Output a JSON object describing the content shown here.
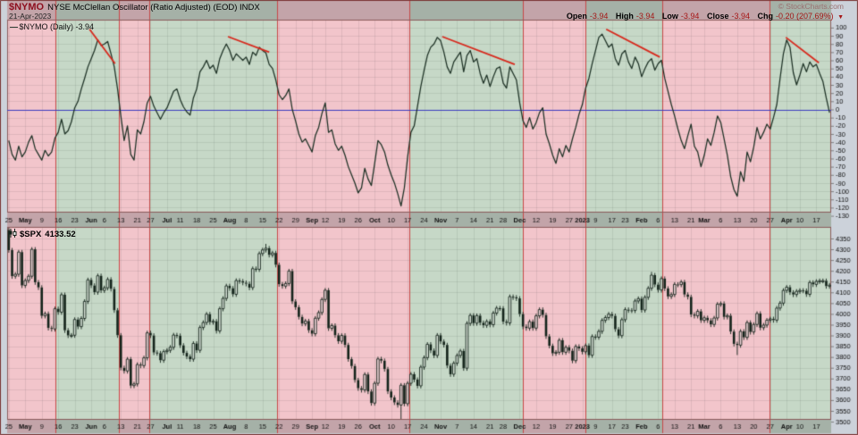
{
  "header": {
    "symbol": "$NYMO",
    "title": "NYSE McClellan Oscillator (Ratio Adjusted) (EOD) INDX",
    "date": "21-Apr-2023",
    "credit": "© StockCharts.com",
    "ohlc": {
      "open_label": "Open",
      "open": "-3.94",
      "high_label": "High",
      "high": "-3.94",
      "low_label": "Low",
      "low": "-3.94",
      "close_label": "Close",
      "close": "-3.94",
      "chg_label": "Chg",
      "chg": "-0.20 (207.69%)",
      "chg_arrow": "▼"
    }
  },
  "oscillator_panel": {
    "legend_swatch": "—",
    "legend": "$NYMO (Daily)",
    "legend_value": "-3.94"
  },
  "price_panel": {
    "legend": "$SPX",
    "legend_value": "4133.52"
  },
  "colors": {
    "band_pink": "#f2c5cb",
    "band_green": "#c6d8c7",
    "band_border": "#c84848",
    "muted_overlay": "rgba(95,95,100,0.32)",
    "axis_bg": "#ccd2da",
    "panel_border": "#8a5a5a",
    "grid": "rgba(60,60,60,0.10)",
    "line": "#1c3024",
    "zero_line": "#3b3bc0",
    "trendline": "#d8281c",
    "candle": "#13231a",
    "text": "#111111",
    "outer_border": "#7a3434"
  },
  "bands": {
    "segments": [
      [
        0,
        0.0586,
        "p"
      ],
      [
        0.0586,
        0.1356,
        "g"
      ],
      [
        0.1356,
        0.1725,
        "p"
      ],
      [
        0.1725,
        0.3276,
        "g"
      ],
      [
        0.3276,
        0.4881,
        "p"
      ],
      [
        0.4881,
        0.6258,
        "g"
      ],
      [
        0.6258,
        0.7017,
        "p"
      ],
      [
        0.7017,
        0.795,
        "g"
      ],
      [
        0.795,
        0.9252,
        "p"
      ],
      [
        0.9252,
        1,
        "g"
      ]
    ]
  },
  "x_axis": {
    "labels": [
      "25",
      "May",
      "9",
      "16",
      "23",
      "Jun",
      "6",
      "13",
      "21",
      "27",
      "Jul",
      "11",
      "18",
      "25",
      "Aug",
      "8",
      "15",
      "22",
      "29",
      "Sep",
      "12",
      "19",
      "26",
      "Oct",
      "10",
      "17",
      "24",
      "Nov",
      "7",
      "14",
      "21",
      "28",
      "Dec",
      "12",
      "19",
      "27",
      "2023",
      "9",
      "17",
      "23",
      "Feb",
      "6",
      "13",
      "21",
      "Mar",
      "6",
      "13",
      "20",
      "27",
      "Apr",
      "10",
      "17"
    ],
    "day_index": [
      0,
      5,
      10,
      15,
      20,
      25,
      29,
      34,
      39,
      43,
      48,
      52,
      57,
      62,
      67,
      72,
      77,
      82,
      87,
      92,
      96,
      101,
      106,
      111,
      116,
      121,
      126,
      131,
      136,
      141,
      146,
      150,
      155,
      160,
      165,
      170,
      174,
      178,
      183,
      187,
      192,
      197,
      202,
      207,
      211,
      216,
      221,
      226,
      231,
      236,
      240,
      245
    ]
  },
  "chart_data": [
    {
      "type": "line",
      "name": "$NYMO (Daily)",
      "title": "NYSE McClellan Oscillator (Ratio Adjusted) (EOD)",
      "last_value": -3.94,
      "ylim": [
        -130,
        110
      ],
      "y_ticks": [
        100,
        90,
        80,
        70,
        60,
        50,
        40,
        30,
        20,
        10,
        0,
        -10,
        -20,
        -30,
        -40,
        -50,
        -60,
        -70,
        -80,
        -90,
        -100,
        -110,
        -120,
        -130
      ],
      "zero_line": 0,
      "trendlines": [
        [
          0.1,
          98,
          0.131,
          56
        ],
        [
          0.268,
          89,
          0.318,
          70
        ],
        [
          0.528,
          89,
          0.616,
          55
        ],
        [
          0.727,
          98,
          0.792,
          64
        ],
        [
          0.945,
          88,
          0.985,
          57
        ]
      ],
      "values": [
        -38,
        -55,
        -62,
        -45,
        -58,
        -52,
        -40,
        -32,
        -48,
        -55,
        -62,
        -50,
        -57,
        -52,
        -35,
        -28,
        -12,
        -30,
        -26,
        -15,
        2,
        10,
        25,
        38,
        52,
        62,
        72,
        85,
        78,
        80,
        83,
        68,
        52,
        25,
        -8,
        -38,
        -20,
        -55,
        -62,
        -25,
        -30,
        -15,
        8,
        16,
        4,
        -4,
        -12,
        -4,
        2,
        12,
        22,
        25,
        12,
        3,
        -3,
        -7,
        14,
        25,
        46,
        52,
        60,
        50,
        54,
        44,
        62,
        72,
        80,
        72,
        60,
        68,
        64,
        60,
        64,
        55,
        70,
        66,
        76,
        72,
        69,
        55,
        50,
        36,
        18,
        12,
        17,
        25,
        0,
        -14,
        -30,
        -40,
        -36,
        -44,
        -52,
        -32,
        -22,
        -5,
        8,
        -28,
        -25,
        -42,
        -50,
        -45,
        -56,
        -70,
        -80,
        -90,
        -102,
        -96,
        -72,
        -85,
        -93,
        -66,
        -38,
        -43,
        -52,
        -68,
        -80,
        -90,
        -103,
        -118,
        -96,
        -58,
        -28,
        -20,
        4,
        28,
        48,
        66,
        76,
        80,
        88,
        84,
        70,
        52,
        44,
        58,
        64,
        70,
        46,
        66,
        72,
        58,
        62,
        44,
        32,
        42,
        28,
        40,
        50,
        52,
        32,
        26,
        52,
        44,
        36,
        8,
        -14,
        -22,
        -10,
        -24,
        -16,
        -4,
        2,
        -30,
        -42,
        -56,
        -66,
        -48,
        -58,
        -44,
        -52,
        -36,
        -22,
        -6,
        6,
        26,
        38,
        56,
        72,
        88,
        92,
        84,
        76,
        80,
        62,
        54,
        68,
        72,
        58,
        50,
        64,
        56,
        40,
        50,
        58,
        62,
        48,
        56,
        60,
        38,
        22,
        6,
        -8,
        -24,
        -38,
        -48,
        -32,
        -18,
        -45,
        -52,
        -70,
        -56,
        -36,
        -44,
        -28,
        -8,
        -16,
        -36,
        -56,
        -82,
        -98,
        -106,
        -76,
        -88,
        -52,
        -64,
        -46,
        -22,
        -36,
        -28,
        -18,
        -24,
        -10,
        6,
        38,
        68,
        85,
        76,
        45,
        30,
        42,
        56,
        46,
        58,
        52,
        55,
        44,
        34,
        14,
        -3.94
      ]
    },
    {
      "type": "candlestick",
      "name": "$SPX",
      "last_value": 4133.52,
      "ylim": [
        3500,
        4404
      ],
      "y_ticks": [
        4350,
        4300,
        4250,
        4200,
        4150,
        4100,
        4050,
        4000,
        3950,
        3900,
        3850,
        3800,
        3750,
        3700,
        3650,
        3600,
        3550,
        3500
      ],
      "first_open": 4390,
      "wick_pad_high": 10,
      "wick_pad_low": 12,
      "high_overrides": {
        "78": 4325,
        "195": 4195
      },
      "low_overrides": {
        "119": 3491,
        "221": 3809
      },
      "closes": [
        4296,
        4175,
        4184,
        4287,
        4132,
        4155,
        4175,
        4300,
        4147,
        4123,
        3991,
        4001,
        3935,
        3930,
        4024,
        4008,
        4089,
        3924,
        3900,
        3901,
        3974,
        3941,
        3979,
        4058,
        4158,
        4132,
        4101,
        4177,
        4109,
        4121,
        4160,
        4116,
        4017,
        3901,
        3750,
        3735,
        3790,
        3667,
        3675,
        3765,
        3760,
        3796,
        3912,
        3900,
        3821,
        3818,
        3785,
        3825,
        3831,
        3845,
        3902,
        3899,
        3854,
        3819,
        3802,
        3790,
        3863,
        3831,
        3937,
        3960,
        3999,
        3962,
        3966,
        3921,
        4024,
        4072,
        4130,
        4119,
        4091,
        4155,
        4152,
        4145,
        4140,
        4122,
        4210,
        4207,
        4280,
        4297,
        4305,
        4274,
        4283,
        4228,
        4138,
        4129,
        4141,
        4199,
        4058,
        4031,
        3986,
        3955,
        3967,
        3924,
        3908,
        3980,
        4006,
        4067,
        4110,
        3933,
        3946,
        3901,
        3873,
        3900,
        3856,
        3790,
        3758,
        3693,
        3655,
        3647,
        3719,
        3640,
        3586,
        3678,
        3791,
        3783,
        3744,
        3640,
        3612,
        3589,
        3577,
        3669,
        3583,
        3678,
        3720,
        3695,
        3666,
        3753,
        3797,
        3859,
        3830,
        3807,
        3901,
        3872,
        3856,
        3760,
        3720,
        3771,
        3807,
        3828,
        3748,
        3956,
        3993,
        3957,
        3992,
        3959,
        3947,
        3965,
        3950,
        4004,
        4027,
        4026,
        3964,
        3958,
        4080,
        4077,
        4072,
        3999,
        3941,
        3934,
        3964,
        3934,
        3991,
        4020,
        3995,
        3896,
        3852,
        3817,
        3822,
        3878,
        3822,
        3845,
        3829,
        3783,
        3849,
        3840,
        3824,
        3853,
        3808,
        3895,
        3892,
        3919,
        3970,
        3983,
        3999,
        3991,
        3929,
        3899,
        3973,
        4020,
        4017,
        4016,
        4060,
        4071,
        4018,
        4077,
        4119,
        4180,
        4136,
        4111,
        4164,
        4118,
        4081,
        4090,
        4137,
        4136,
        4148,
        4090,
        4079,
        3997,
        3991,
        4012,
        3970,
        3982,
        3970,
        3951,
        3981,
        4045,
        4048,
        3986,
        3992,
        3918,
        3861,
        3855,
        3919,
        3891,
        3960,
        3916,
        3951,
        4002,
        3936,
        3948,
        3971,
        3977,
        3971,
        4027,
        4050,
        4109,
        4124,
        4100,
        4090,
        4105,
        4109,
        4108,
        4091,
        4146,
        4137,
        4151,
        4154,
        4154,
        4129,
        4133.5
      ]
    }
  ]
}
